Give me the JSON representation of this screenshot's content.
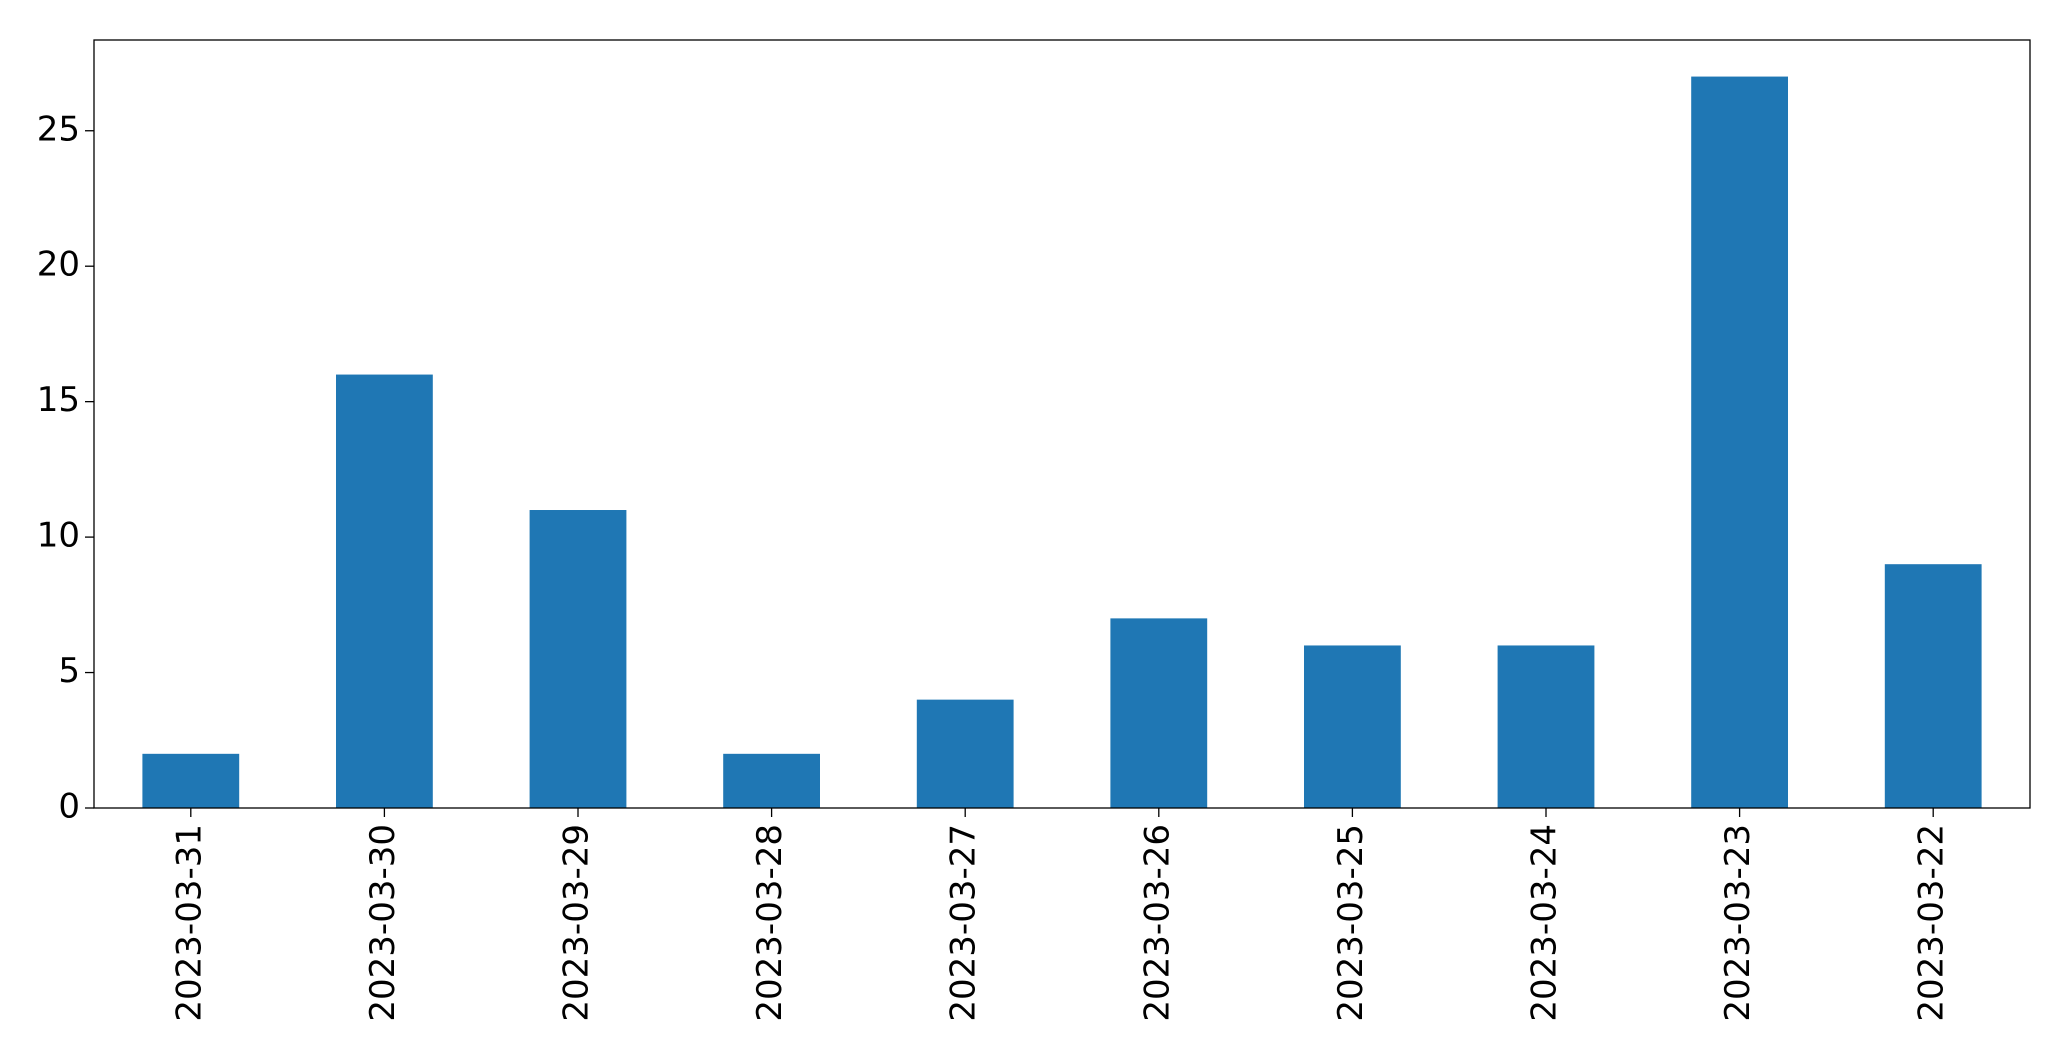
{
  "chart_data": {
    "type": "bar",
    "categories": [
      "2023-03-31",
      "2023-03-30",
      "2023-03-29",
      "2023-03-28",
      "2023-03-27",
      "2023-03-26",
      "2023-03-25",
      "2023-03-24",
      "2023-03-23",
      "2023-03-22"
    ],
    "values": [
      2,
      16,
      11,
      2,
      4,
      7,
      6,
      6,
      27,
      9
    ],
    "color": "#1f77b4",
    "ylim": [
      0,
      28.35
    ],
    "yticks": [
      0,
      5,
      10,
      15,
      20,
      25
    ],
    "grid": false
  }
}
